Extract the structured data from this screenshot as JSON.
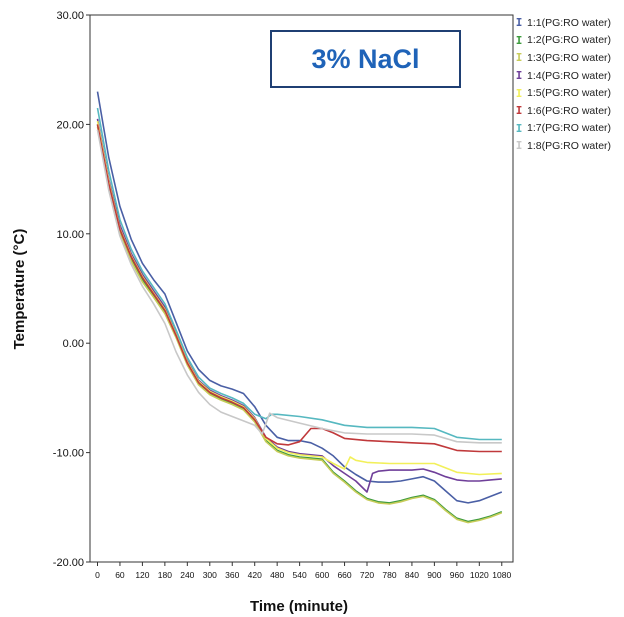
{
  "chart_data": {
    "type": "line",
    "xlabel": "Time (minute)",
    "ylabel": "Temperature (°C)",
    "xlim": [
      -20,
      1110
    ],
    "ylim": [
      -20,
      30
    ],
    "xticks": [
      0,
      60,
      120,
      180,
      240,
      300,
      360,
      420,
      480,
      540,
      600,
      660,
      720,
      780,
      840,
      900,
      960,
      1020,
      1080
    ],
    "yticks": [
      {
        "value": 30,
        "label": "30.00"
      },
      {
        "value": 20,
        "label": "20.00"
      },
      {
        "value": 10,
        "label": "10.00"
      },
      {
        "value": 0,
        "label": "0.00"
      },
      {
        "value": -10,
        "label": "-10.00"
      },
      {
        "value": -20,
        "label": "-20.00"
      }
    ],
    "annotation": "3% NaCl",
    "legend_position": "right",
    "grid": false,
    "series": [
      {
        "name": "1:1(PG:RO water)",
        "color": "#4a5fa5",
        "x": [
          0,
          30,
          60,
          90,
          120,
          150,
          180,
          210,
          240,
          270,
          300,
          330,
          360,
          390,
          420,
          450,
          480,
          510,
          540,
          570,
          600,
          630,
          660,
          690,
          720,
          750,
          780,
          810,
          840,
          870,
          900,
          930,
          960,
          990,
          1020,
          1050,
          1080
        ],
        "y": [
          23,
          17,
          12.5,
          9.5,
          7.3,
          5.8,
          4.5,
          1.9,
          -0.7,
          -2.4,
          -3.4,
          -3.9,
          -4.2,
          -4.6,
          -5.8,
          -7.5,
          -8.6,
          -8.9,
          -8.9,
          -9.1,
          -9.6,
          -10.3,
          -11.3,
          -12.0,
          -12.6,
          -12.7,
          -12.7,
          -12.6,
          -12.4,
          -12.2,
          -12.6,
          -13.5,
          -14.4,
          -14.6,
          -14.4,
          -14.0,
          -13.6
        ]
      },
      {
        "name": "1:2(PG:RO water)",
        "color": "#3d9b3d",
        "x": [
          0,
          30,
          60,
          90,
          120,
          150,
          180,
          210,
          240,
          270,
          300,
          330,
          360,
          390,
          420,
          450,
          480,
          510,
          540,
          570,
          600,
          630,
          660,
          690,
          720,
          750,
          780,
          810,
          840,
          870,
          900,
          930,
          960,
          990,
          1020,
          1050,
          1080
        ],
        "y": [
          20,
          14.5,
          10.2,
          7.7,
          5.8,
          4.4,
          2.9,
          0.6,
          -1.9,
          -3.7,
          -4.6,
          -5.1,
          -5.5,
          -6.0,
          -7.1,
          -8.9,
          -9.8,
          -10.2,
          -10.4,
          -10.5,
          -10.6,
          -11.8,
          -12.6,
          -13.5,
          -14.2,
          -14.5,
          -14.6,
          -14.4,
          -14.1,
          -13.9,
          -14.3,
          -15.2,
          -16.0,
          -16.3,
          -16.1,
          -15.8,
          -15.4
        ]
      },
      {
        "name": "1:3(PG:RO water)",
        "color": "#c8cc5a",
        "x": [
          0,
          30,
          60,
          90,
          120,
          150,
          180,
          210,
          240,
          270,
          300,
          330,
          360,
          390,
          420,
          450,
          480,
          510,
          540,
          570,
          600,
          630,
          660,
          690,
          720,
          750,
          780,
          810,
          840,
          870,
          900,
          930,
          960,
          990,
          1020,
          1050,
          1080
        ],
        "y": [
          19.8,
          14.3,
          10.0,
          7.5,
          5.6,
          4.2,
          2.7,
          0.5,
          -2.0,
          -3.8,
          -4.7,
          -5.2,
          -5.6,
          -6.1,
          -7.2,
          -9.0,
          -9.9,
          -10.3,
          -10.5,
          -10.6,
          -10.7,
          -11.9,
          -12.7,
          -13.6,
          -14.3,
          -14.6,
          -14.7,
          -14.5,
          -14.2,
          -14.0,
          -14.4,
          -15.3,
          -16.1,
          -16.4,
          -16.2,
          -15.9,
          -15.5
        ]
      },
      {
        "name": "1:4(PG:RO water)",
        "color": "#6f3f99",
        "x": [
          0,
          30,
          60,
          90,
          120,
          150,
          180,
          210,
          240,
          270,
          300,
          330,
          360,
          390,
          420,
          450,
          480,
          510,
          540,
          570,
          600,
          630,
          660,
          690,
          720,
          735,
          750,
          780,
          810,
          840,
          870,
          900,
          930,
          960,
          990,
          1020,
          1050,
          1080
        ],
        "y": [
          20.5,
          15.0,
          10.8,
          8.2,
          6.3,
          4.8,
          3.3,
          0.9,
          -1.6,
          -3.4,
          -4.3,
          -4.8,
          -5.2,
          -5.7,
          -6.8,
          -8.6,
          -9.5,
          -9.9,
          -10.1,
          -10.2,
          -10.3,
          -11.2,
          -11.9,
          -12.6,
          -13.6,
          -11.9,
          -11.7,
          -11.6,
          -11.6,
          -11.6,
          -11.5,
          -11.8,
          -12.2,
          -12.5,
          -12.6,
          -12.6,
          -12.5,
          -12.4
        ]
      },
      {
        "name": "1:5(PG:RO water)",
        "color": "#f2f05a",
        "x": [
          0,
          30,
          60,
          90,
          120,
          150,
          180,
          210,
          240,
          270,
          300,
          330,
          360,
          390,
          420,
          450,
          480,
          510,
          540,
          570,
          600,
          630,
          660,
          675,
          690,
          720,
          780,
          840,
          900,
          960,
          1020,
          1080
        ],
        "y": [
          20.3,
          14.8,
          10.5,
          8.0,
          6.1,
          4.6,
          3.1,
          0.8,
          -1.7,
          -3.5,
          -4.4,
          -4.9,
          -5.3,
          -5.8,
          -6.9,
          -8.7,
          -9.6,
          -10.0,
          -10.2,
          -10.3,
          -10.4,
          -11.0,
          -11.5,
          -10.4,
          -10.7,
          -10.9,
          -11.0,
          -11.0,
          -11.0,
          -11.8,
          -12.0,
          -11.9
        ]
      },
      {
        "name": "1:6(PG:RO water)",
        "color": "#c0393b",
        "x": [
          0,
          30,
          60,
          90,
          120,
          150,
          180,
          210,
          240,
          270,
          300,
          330,
          360,
          390,
          420,
          450,
          480,
          510,
          540,
          555,
          570,
          600,
          630,
          660,
          720,
          780,
          840,
          900,
          960,
          1020,
          1080
        ],
        "y": [
          20.0,
          14.6,
          10.4,
          7.9,
          6.0,
          4.5,
          3.0,
          0.7,
          -1.8,
          -3.6,
          -4.5,
          -5.0,
          -5.4,
          -5.9,
          -7.0,
          -8.6,
          -9.2,
          -9.3,
          -9.0,
          -8.4,
          -7.8,
          -7.8,
          -8.2,
          -8.7,
          -8.9,
          -9.0,
          -9.1,
          -9.2,
          -9.8,
          -9.9,
          -9.9
        ]
      },
      {
        "name": "1:7(PG:RO water)",
        "color": "#56b8c0",
        "x": [
          0,
          30,
          60,
          90,
          120,
          150,
          180,
          210,
          240,
          270,
          300,
          330,
          360,
          390,
          420,
          450,
          465,
          480,
          540,
          600,
          660,
          720,
          780,
          840,
          900,
          960,
          1020,
          1080
        ],
        "y": [
          21.5,
          15.8,
          11.3,
          8.6,
          6.6,
          5.1,
          3.6,
          1.2,
          -1.3,
          -3.1,
          -4.1,
          -4.6,
          -5.0,
          -5.5,
          -6.5,
          -6.9,
          -6.5,
          -6.5,
          -6.7,
          -7.0,
          -7.5,
          -7.7,
          -7.7,
          -7.7,
          -7.8,
          -8.6,
          -8.8,
          -8.8
        ]
      },
      {
        "name": "1:8(PG:RO water)",
        "color": "#c8c8c8",
        "x": [
          0,
          30,
          60,
          90,
          120,
          150,
          180,
          210,
          240,
          270,
          300,
          330,
          360,
          390,
          420,
          440,
          460,
          480,
          540,
          600,
          660,
          720,
          780,
          840,
          900,
          960,
          1020,
          1080
        ],
        "y": [
          19.5,
          14.0,
          9.8,
          7.2,
          5.2,
          3.6,
          1.8,
          -0.8,
          -2.9,
          -4.5,
          -5.6,
          -6.3,
          -6.7,
          -7.1,
          -7.5,
          -8.3,
          -6.4,
          -6.8,
          -7.3,
          -7.8,
          -8.2,
          -8.3,
          -8.3,
          -8.3,
          -8.4,
          -9.0,
          -9.1,
          -9.1
        ]
      }
    ]
  }
}
